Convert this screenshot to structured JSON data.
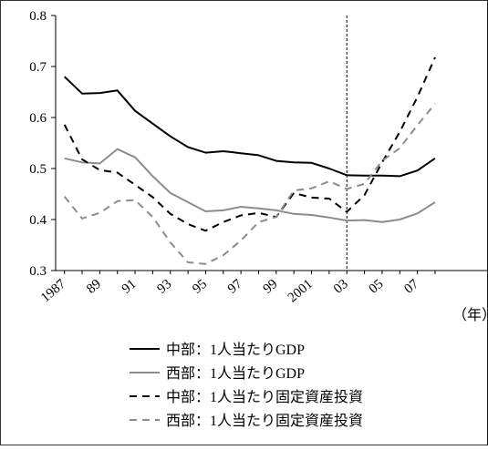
{
  "chart_data": {
    "type": "line",
    "title": "",
    "xlabel": "",
    "ylabel": "",
    "x_unit_label": "（年）",
    "x": [
      1987,
      1988,
      1989,
      1990,
      1991,
      1992,
      1993,
      1994,
      1995,
      1996,
      1997,
      1998,
      1999,
      2000,
      2001,
      2002,
      2003,
      2004,
      2005,
      2006,
      2007,
      2008
    ],
    "x_tick_labels": [
      {
        "year": 1987,
        "label": "1987"
      },
      {
        "year": 1989,
        "label": "89"
      },
      {
        "year": 1991,
        "label": "91"
      },
      {
        "year": 1993,
        "label": "93"
      },
      {
        "year": 1995,
        "label": "95"
      },
      {
        "year": 1997,
        "label": "97"
      },
      {
        "year": 1999,
        "label": "99"
      },
      {
        "year": 2001,
        "label": "2001"
      },
      {
        "year": 2003,
        "label": "03"
      },
      {
        "year": 2005,
        "label": "05"
      },
      {
        "year": 2007,
        "label": "07"
      }
    ],
    "xlim": [
      1986.5,
      2011
    ],
    "ylim": [
      0.3,
      0.8
    ],
    "y_ticks": [
      "0.3",
      "0.4",
      "0.5",
      "0.6",
      "0.7",
      "0.8"
    ],
    "grid": false,
    "reference_line": {
      "x": 2003,
      "style": "dashed"
    },
    "legend_position": "bottom-left",
    "series": [
      {
        "name": "中部：1人当たりGDP",
        "color": "#000000",
        "dashed": false,
        "values": [
          0.68,
          0.647,
          0.648,
          0.653,
          0.613,
          0.588,
          0.563,
          0.542,
          0.531,
          0.534,
          0.53,
          0.526,
          0.515,
          0.512,
          0.511,
          0.5,
          0.487,
          0.486,
          0.486,
          0.485,
          0.496,
          0.52
        ]
      },
      {
        "name": "西部：1人当たりGDP",
        "color": "#8c8c8c",
        "dashed": false,
        "values": [
          0.52,
          0.512,
          0.51,
          0.538,
          0.522,
          0.485,
          0.452,
          0.434,
          0.416,
          0.418,
          0.425,
          0.422,
          0.418,
          0.411,
          0.409,
          0.404,
          0.398,
          0.399,
          0.395,
          0.4,
          0.412,
          0.434
        ]
      },
      {
        "name": "中部：1人当たり固定資産投資",
        "color": "#000000",
        "dashed": true,
        "values": [
          0.586,
          0.518,
          0.497,
          0.492,
          0.468,
          0.444,
          0.411,
          0.391,
          0.378,
          0.395,
          0.408,
          0.413,
          0.405,
          0.452,
          0.443,
          0.441,
          0.415,
          0.448,
          0.512,
          0.572,
          0.64,
          0.718
        ]
      },
      {
        "name": "西部：1人当たり固定資産投資",
        "color": "#8c8c8c",
        "dashed": true,
        "values": [
          0.445,
          0.402,
          0.413,
          0.436,
          0.438,
          0.405,
          0.355,
          0.316,
          0.313,
          0.33,
          0.359,
          0.395,
          0.405,
          0.457,
          0.461,
          0.475,
          0.46,
          0.47,
          0.515,
          0.54,
          0.585,
          0.627
        ]
      }
    ]
  }
}
